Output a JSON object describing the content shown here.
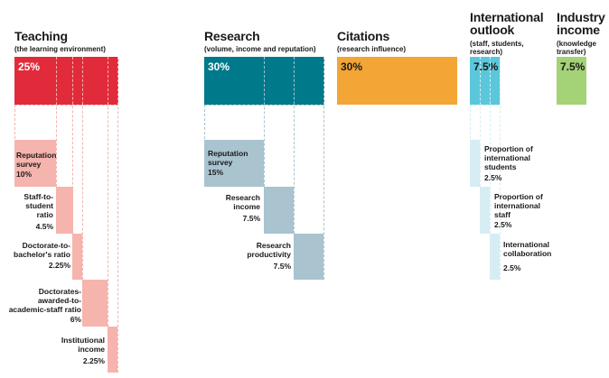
{
  "colors": {
    "teaching": "#e12b3b",
    "teaching_light": "#f5b4ae",
    "research": "#00798a",
    "research_light": "#a9c3cf",
    "citations": "#f3a535",
    "international": "#5bc7da",
    "international_light": "#d7edf4",
    "industry": "#a3d277"
  },
  "teaching": {
    "title": "Teaching",
    "subtitle": "(the learning environment)",
    "weight": "25%",
    "subs": [
      {
        "label": "Reputation survey",
        "weight": "10%"
      },
      {
        "label": "Staff-to-student ratio",
        "weight": "4.5%"
      },
      {
        "label": "Doctorate-to-bachelor's ratio",
        "weight": "2.25%"
      },
      {
        "label": "Doctorates-awarded-to-academic-staff ratio",
        "weight": "6%"
      },
      {
        "label": "Institutional income",
        "weight": "2.25%"
      }
    ]
  },
  "research": {
    "title": "Research",
    "subtitle": "(volume, income and reputation)",
    "weight": "30%",
    "subs": [
      {
        "label": "Reputation survey",
        "weight": "15%"
      },
      {
        "label": "Research income",
        "weight": "7.5%"
      },
      {
        "label": "Research productivity",
        "weight": "7.5%"
      }
    ]
  },
  "citations": {
    "title": "Citations",
    "subtitle": "(research influence)",
    "weight": "30%"
  },
  "international": {
    "title": "International outlook",
    "subtitle": "(staff, students, research)",
    "weight": "7.5%",
    "subs": [
      {
        "label": "Proportion of international students",
        "weight": "2.5%"
      },
      {
        "label": "Proportion of international staff",
        "weight": "2.5%"
      },
      {
        "label": "International collaboration",
        "weight": "2.5%"
      }
    ]
  },
  "industry": {
    "title": "Industry income",
    "subtitle": "(knowledge transfer)",
    "weight": "7.5%"
  }
}
